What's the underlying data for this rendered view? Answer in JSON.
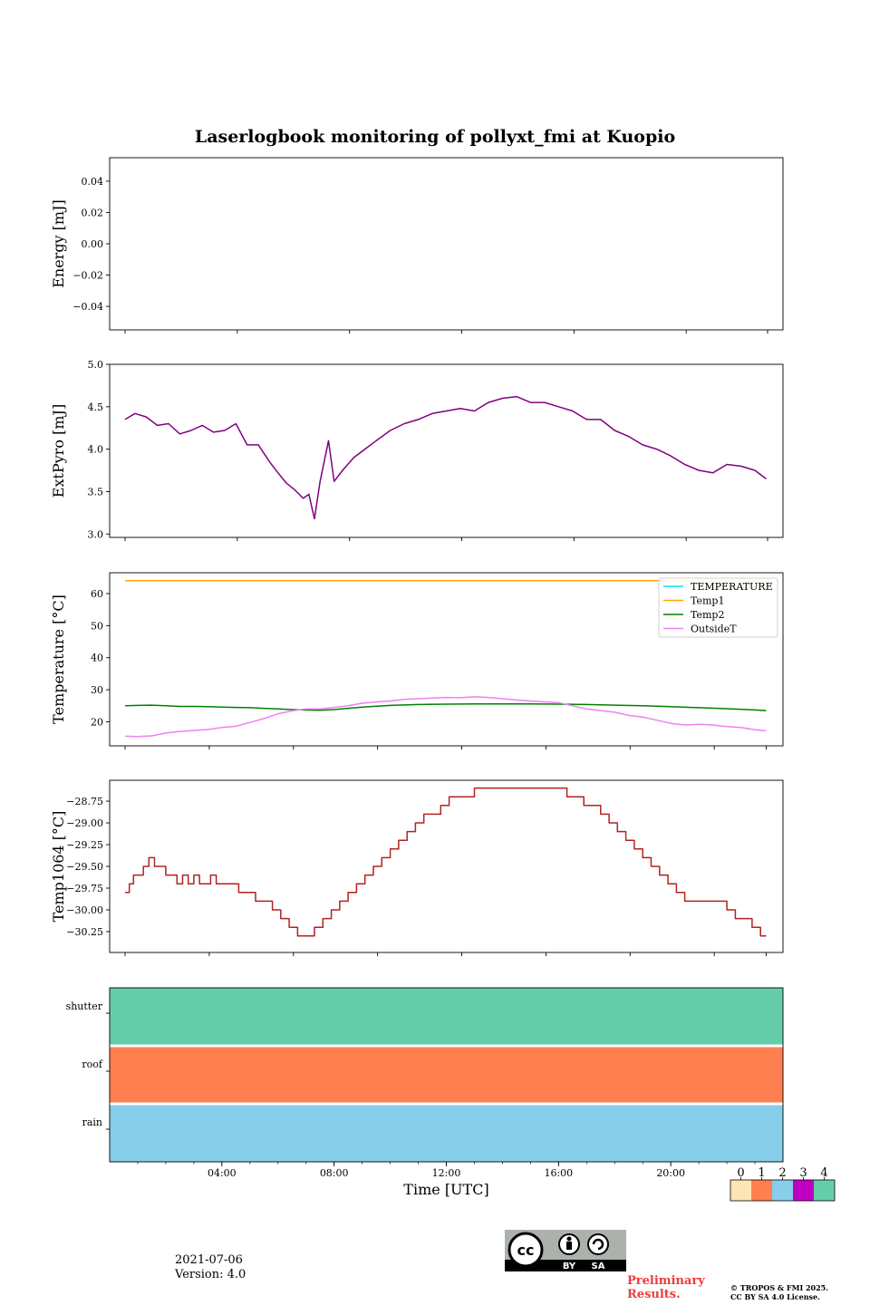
{
  "title": "Laserlogbook monitoring of pollyxt_fmi at Kuopio",
  "footer": {
    "date": "2021-07-06",
    "version": "Version: 4.0",
    "preliminary_line1": "Preliminary",
    "preliminary_line2": "Results.",
    "copyright_line1": "© TROPOS & FMI 2025.",
    "copyright_line2": "CC BY SA 4.0 License.",
    "badge_text": [
      "BY",
      "SA"
    ]
  },
  "chart_data": [
    {
      "type": "line",
      "panel": "energy",
      "ylabel": "Energy [mJ]",
      "ylim": [
        -0.055,
        0.055
      ],
      "yticks": [
        0.04,
        0.02,
        0.0,
        -0.02,
        -0.04
      ],
      "ytick_labels": [
        "0.04",
        "0.02",
        "0.00",
        "−0.02",
        "−0.04"
      ],
      "xlim_hours": [
        0,
        24
      ],
      "series": []
    },
    {
      "type": "line",
      "panel": "extpyro",
      "ylabel": "ExtPyro [mJ]",
      "ylim": [
        2.96,
        5.0
      ],
      "yticks": [
        5.0,
        4.5,
        4.0,
        3.5,
        3.0
      ],
      "ytick_labels": [
        "5.0",
        "4.5",
        "4.0",
        "3.5",
        "3.0"
      ],
      "xlim_hours": [
        0,
        24
      ],
      "series": [
        {
          "name": "ExtPyro",
          "color": "#800080",
          "x": [
            0.55,
            0.9,
            1.3,
            1.7,
            2.1,
            2.5,
            2.9,
            3.3,
            3.7,
            4.1,
            4.5,
            4.9,
            5.3,
            5.7,
            6.0,
            6.3,
            6.6,
            6.9,
            7.1,
            7.3,
            7.5,
            7.8,
            8.0,
            8.3,
            8.7,
            9.1,
            9.5,
            10.0,
            10.5,
            11.0,
            11.5,
            12.0,
            12.5,
            13.0,
            13.5,
            14.0,
            14.5,
            15.0,
            15.5,
            16.0,
            16.5,
            17.0,
            17.5,
            18.0,
            18.5,
            19.0,
            19.5,
            20.0,
            20.5,
            21.0,
            21.5,
            22.0,
            22.5,
            23.0,
            23.4
          ],
          "y": [
            4.35,
            4.42,
            4.38,
            4.28,
            4.3,
            4.18,
            4.22,
            4.28,
            4.2,
            4.22,
            4.3,
            4.05,
            4.05,
            3.85,
            3.72,
            3.6,
            3.52,
            3.42,
            3.47,
            3.18,
            3.62,
            4.1,
            3.62,
            3.75,
            3.9,
            4.0,
            4.1,
            4.22,
            4.3,
            4.35,
            4.42,
            4.45,
            4.48,
            4.45,
            4.55,
            4.6,
            4.62,
            4.55,
            4.55,
            4.5,
            4.45,
            4.35,
            4.35,
            4.22,
            4.15,
            4.05,
            4.0,
            3.92,
            3.82,
            3.75,
            3.72,
            3.82,
            3.8,
            3.75,
            3.65
          ]
        }
      ]
    },
    {
      "type": "line",
      "panel": "temperature",
      "ylabel": "Temperature [°C]",
      "ylim": [
        12.5,
        66.5
      ],
      "yticks": [
        60,
        50,
        40,
        30,
        20
      ],
      "ytick_labels": [
        "60",
        "50",
        "40",
        "30",
        "20"
      ],
      "xlim_hours": [
        0,
        24
      ],
      "legend": "top-right",
      "series": [
        {
          "name": "TEMPERATURE",
          "color": "#00e5ee",
          "x": [],
          "y": []
        },
        {
          "name": "Temp1",
          "color": "#ffa500",
          "x": [
            0.55,
            23.4
          ],
          "y": [
            64,
            64
          ]
        },
        {
          "name": "Temp2",
          "color": "#008000",
          "x": [
            0.55,
            1.0,
            1.5,
            2.0,
            2.5,
            3.0,
            3.5,
            4.0,
            4.5,
            5.0,
            5.5,
            6.0,
            6.5,
            7.0,
            7.5,
            8.0,
            8.5,
            9.0,
            10.0,
            11.0,
            12.0,
            13.0,
            14.0,
            15.0,
            16.0,
            17.0,
            18.0,
            19.0,
            20.0,
            21.0,
            22.0,
            23.0,
            23.4
          ],
          "y": [
            25,
            25.1,
            25.2,
            25,
            24.8,
            24.8,
            24.7,
            24.6,
            24.5,
            24.4,
            24.2,
            24,
            23.8,
            23.7,
            23.6,
            23.8,
            24.2,
            24.6,
            25.1,
            25.4,
            25.5,
            25.6,
            25.6,
            25.6,
            25.5,
            25.4,
            25.2,
            25,
            24.7,
            24.4,
            24.1,
            23.7,
            23.5
          ]
        },
        {
          "name": "OutsideT",
          "color": "#ee82ee",
          "x": [
            0.55,
            1.0,
            1.5,
            2.0,
            2.5,
            3.0,
            3.5,
            4.0,
            4.5,
            5.0,
            5.5,
            6.0,
            6.5,
            7.0,
            7.5,
            8.0,
            8.5,
            9.0,
            9.5,
            10.0,
            10.5,
            11.0,
            11.5,
            12.0,
            12.5,
            13.0,
            13.5,
            14.0,
            14.5,
            15.0,
            15.5,
            16.0,
            16.5,
            17.0,
            17.5,
            18.0,
            18.5,
            19.0,
            19.5,
            20.0,
            20.5,
            21.0,
            21.5,
            22.0,
            22.5,
            23.0,
            23.4
          ],
          "y": [
            15.5,
            15.4,
            15.6,
            16.5,
            17,
            17.3,
            17.6,
            18.2,
            18.6,
            19.8,
            21,
            22.5,
            23.4,
            24,
            24,
            24.5,
            25,
            25.8,
            26.2,
            26.5,
            27,
            27.2,
            27.4,
            27.6,
            27.5,
            27.8,
            27.6,
            27.2,
            26.8,
            26.5,
            26.2,
            26,
            25,
            24,
            23.5,
            23,
            22,
            21.5,
            20.5,
            19.5,
            19,
            19.2,
            19,
            18.5,
            18.2,
            17.5,
            17.2
          ]
        }
      ]
    },
    {
      "type": "line",
      "panel": "temp1064",
      "ylabel": "Temp1064 [°C]",
      "ylim": [
        -30.49,
        -28.51
      ],
      "yticks": [
        -28.75,
        -29.0,
        -29.25,
        -29.5,
        -29.75,
        -30.0,
        -30.25
      ],
      "ytick_labels": [
        "−28.75",
        "−29.00",
        "−29.25",
        "−29.50",
        "−29.75",
        "−30.00",
        "−30.25"
      ],
      "xlim_hours": [
        0,
        24
      ],
      "series": [
        {
          "name": "Temp1064",
          "color": "#b22222",
          "x": [
            0.55,
            0.7,
            0.85,
            1.0,
            1.2,
            1.4,
            1.6,
            1.8,
            2.0,
            2.2,
            2.4,
            2.6,
            2.8,
            3.0,
            3.2,
            3.4,
            3.6,
            3.8,
            4.0,
            4.3,
            4.6,
            4.9,
            5.2,
            5.5,
            5.8,
            6.1,
            6.4,
            6.7,
            7.0,
            7.3,
            7.6,
            7.9,
            8.2,
            8.5,
            8.8,
            9.1,
            9.4,
            9.7,
            10.0,
            10.3,
            10.6,
            10.9,
            11.2,
            11.5,
            11.8,
            12.1,
            12.4,
            12.7,
            13.0,
            13.5,
            14.0,
            14.5,
            15.0,
            15.5,
            16.0,
            16.3,
            16.6,
            16.9,
            17.2,
            17.5,
            17.8,
            18.1,
            18.4,
            18.7,
            19.0,
            19.3,
            19.6,
            19.9,
            20.2,
            20.5,
            20.8,
            21.1,
            21.4,
            21.7,
            22.0,
            22.3,
            22.6,
            22.9,
            23.2,
            23.4
          ],
          "y": [
            -29.8,
            -29.7,
            -29.6,
            -29.6,
            -29.5,
            -29.4,
            -29.5,
            -29.5,
            -29.6,
            -29.6,
            -29.7,
            -29.6,
            -29.7,
            -29.6,
            -29.7,
            -29.7,
            -29.6,
            -29.7,
            -29.7,
            -29.7,
            -29.8,
            -29.8,
            -29.9,
            -29.9,
            -30.0,
            -30.1,
            -30.2,
            -30.3,
            -30.3,
            -30.2,
            -30.1,
            -30.0,
            -29.9,
            -29.8,
            -29.7,
            -29.6,
            -29.5,
            -29.4,
            -29.3,
            -29.2,
            -29.1,
            -29.0,
            -28.9,
            -28.9,
            -28.8,
            -28.7,
            -28.7,
            -28.7,
            -28.6,
            -28.6,
            -28.6,
            -28.6,
            -28.6,
            -28.6,
            -28.6,
            -28.7,
            -28.7,
            -28.8,
            -28.8,
            -28.9,
            -29.0,
            -29.1,
            -29.2,
            -29.3,
            -29.4,
            -29.5,
            -29.6,
            -29.7,
            -29.8,
            -29.9,
            -29.9,
            -29.9,
            -29.9,
            -29.9,
            -30.0,
            -30.1,
            -30.1,
            -30.2,
            -30.3,
            -30.3
          ]
        }
      ]
    },
    {
      "type": "heatmap",
      "panel": "status",
      "xlabel": "Time [UTC]",
      "xlim_hours": [
        0,
        24
      ],
      "xticks_hours": [
        4,
        8,
        12,
        16,
        20
      ],
      "xtick_labels": [
        "04:00",
        "08:00",
        "12:00",
        "16:00",
        "20:00"
      ],
      "rows": [
        {
          "label": "shutter",
          "value": 4
        },
        {
          "label": "roof",
          "value": 1
        },
        {
          "label": "rain",
          "value": 2
        }
      ],
      "colorbar": {
        "labels": [
          "0",
          "1",
          "2",
          "3",
          "4"
        ],
        "colors": [
          "#ffe4b5",
          "#ff7f50",
          "#87ceeb",
          "#c000c0",
          "#66cdaa"
        ]
      }
    }
  ]
}
